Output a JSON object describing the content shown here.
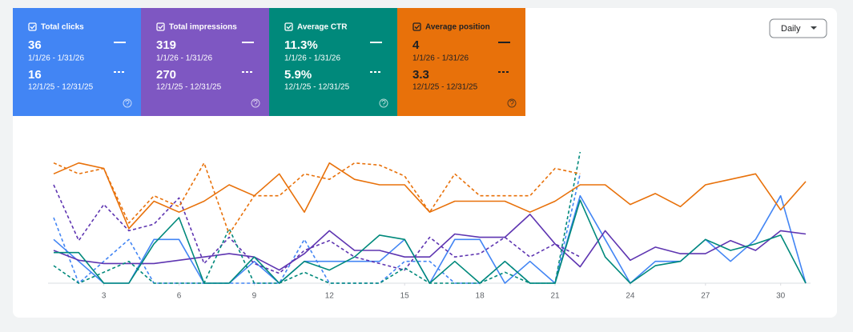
{
  "cards": [
    {
      "label": "Total clicks",
      "current": {
        "value": "36",
        "range": "1/1/26 - 1/31/26"
      },
      "previous": {
        "value": "16",
        "range": "12/1/25 - 12/31/25"
      }
    },
    {
      "label": "Total impressions",
      "current": {
        "value": "319",
        "range": "1/1/26 - 1/31/26"
      },
      "previous": {
        "value": "270",
        "range": "12/1/25 - 12/31/25"
      }
    },
    {
      "label": "Average CTR",
      "current": {
        "value": "11.3%",
        "range": "1/1/26 - 1/31/26"
      },
      "previous": {
        "value": "5.9%",
        "range": "12/1/25 - 12/31/25"
      }
    },
    {
      "label": "Average position",
      "current": {
        "value": "4",
        "range": "1/1/26 - 1/31/26"
      },
      "previous": {
        "value": "3.3",
        "range": "12/1/25 - 12/31/25"
      }
    }
  ],
  "dropdown": "Daily",
  "chart_data": {
    "type": "line",
    "x": [
      1,
      2,
      3,
      4,
      5,
      6,
      7,
      8,
      9,
      10,
      11,
      12,
      13,
      14,
      15,
      16,
      17,
      18,
      19,
      20,
      21,
      22,
      23,
      24,
      25,
      26,
      27,
      28,
      29,
      30,
      31
    ],
    "xlim": [
      1,
      31
    ],
    "xticks": [
      3,
      6,
      9,
      12,
      15,
      18,
      21,
      24,
      27,
      30
    ],
    "series": [
      {
        "color": "#4285f4",
        "dashed": false,
        "ylim": [
          0,
          6
        ],
        "values": [
          2,
          1,
          0,
          0,
          2,
          2,
          0,
          0,
          1,
          0,
          1,
          1,
          1,
          1,
          2,
          0,
          2,
          2,
          0,
          1,
          0,
          4,
          2,
          0,
          1,
          1,
          2,
          1,
          2,
          4,
          0
        ]
      },
      {
        "color": "#4285f4",
        "dashed": true,
        "ylim": [
          0,
          6
        ],
        "values": [
          3,
          0,
          1,
          2,
          0,
          0,
          0,
          0,
          0,
          0,
          2,
          0,
          0,
          0,
          1,
          1,
          0,
          0,
          1,
          0,
          0,
          5,
          null,
          null,
          null,
          null,
          null,
          null,
          null,
          null,
          null
        ]
      },
      {
        "color": "#5e35b1",
        "dashed": false,
        "ylim": [
          0,
          40
        ],
        "values": [
          10,
          7,
          6,
          6,
          6,
          7,
          8,
          9,
          8,
          4,
          9,
          16,
          10,
          10,
          8,
          8,
          15,
          14,
          14,
          21,
          12,
          5,
          16,
          7,
          11,
          9,
          9,
          13,
          10,
          16,
          15
        ]
      },
      {
        "color": "#5e35b1",
        "dashed": true,
        "ylim": [
          0,
          40
        ],
        "values": [
          30,
          13,
          24,
          16,
          18,
          26,
          6,
          14,
          6,
          3,
          10,
          13,
          8,
          6,
          4,
          14,
          8,
          9,
          14,
          8,
          12,
          8,
          null,
          null,
          null,
          null,
          null,
          null,
          null,
          null,
          null
        ]
      },
      {
        "color": "#00897b",
        "dashed": false,
        "ylim": [
          0,
          60
        ],
        "values": [
          14,
          14,
          0,
          0,
          18,
          30,
          0,
          0,
          12,
          0,
          10,
          6,
          12,
          22,
          20,
          0,
          10,
          0,
          10,
          0,
          0,
          38,
          12,
          0,
          8,
          10,
          20,
          15,
          18,
          22,
          0
        ]
      },
      {
        "color": "#00897b",
        "dashed": true,
        "ylim": [
          0,
          60
        ],
        "values": [
          8,
          0,
          5,
          10,
          0,
          0,
          0,
          25,
          0,
          0,
          5,
          0,
          0,
          0,
          7,
          0,
          0,
          0,
          5,
          0,
          0,
          60,
          null,
          null,
          null,
          null,
          null,
          null,
          null,
          null,
          null
        ]
      },
      {
        "color": "#e8710a",
        "dashed": false,
        "ylim": [
          12,
          0
        ],
        "values": [
          2,
          1,
          1.5,
          7,
          4.5,
          5.5,
          4.5,
          3,
          4,
          2,
          5.5,
          1,
          2.5,
          3,
          3,
          5.5,
          4.5,
          4.5,
          4.5,
          5.5,
          4.5,
          3,
          3,
          4.8,
          3.8,
          5,
          3,
          2.5,
          2,
          5.3,
          2.7
        ]
      },
      {
        "color": "#e8710a",
        "dashed": true,
        "ylim": [
          12,
          0
        ],
        "values": [
          1,
          2,
          1.5,
          6.5,
          4,
          5,
          1,
          7.5,
          4,
          4,
          2,
          2.5,
          1,
          1.2,
          2.2,
          5.5,
          2,
          4,
          4,
          4,
          1.5,
          2,
          null,
          null,
          null,
          null,
          null,
          null,
          null,
          null,
          null
        ]
      }
    ]
  }
}
